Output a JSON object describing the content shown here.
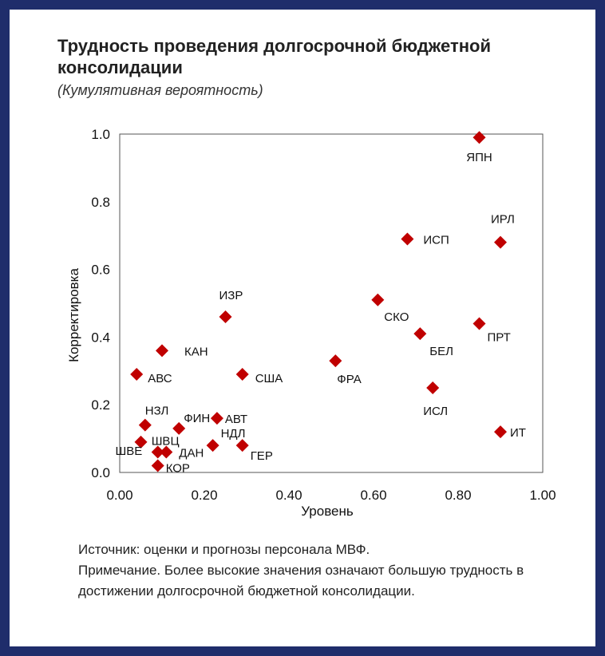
{
  "header": {
    "title": "Трудность проведения долгосрочной бюджетной консолидации",
    "subtitle": "(Кумулятивная вероятность)"
  },
  "footer": {
    "source": "Источник: оценки и прогнозы персонала МВФ.",
    "note": "Примечание. Более высокие значения означают большую трудность в достижении долгосрочной бюджетной консолидации."
  },
  "colors": {
    "marker": "#c00000",
    "frame": "#1f2d6b"
  },
  "chart_data": {
    "type": "scatter",
    "title": "Трудность проведения долгосрочной бюджетной консолидации",
    "subtitle": "(Кумулятивная вероятность)",
    "xlabel": "Уровень",
    "ylabel": "Корректировка",
    "xlim": [
      0.0,
      1.0
    ],
    "ylim": [
      0.0,
      1.0
    ],
    "xticks": [
      "0.00",
      "0.20",
      "0.40",
      "0.60",
      "0.80",
      "1.00"
    ],
    "yticks": [
      "0.0",
      "0.2",
      "0.4",
      "0.6",
      "0.8",
      "1.0"
    ],
    "grid": false,
    "marker": "diamond",
    "points": [
      {
        "label": "ЯПН",
        "x": 0.85,
        "y": 0.99
      },
      {
        "label": "ИРЛ",
        "x": 0.9,
        "y": 0.68
      },
      {
        "label": "ИСП",
        "x": 0.68,
        "y": 0.69
      },
      {
        "label": "СКО",
        "x": 0.61,
        "y": 0.51
      },
      {
        "label": "БЕЛ",
        "x": 0.71,
        "y": 0.41
      },
      {
        "label": "ПРТ",
        "x": 0.85,
        "y": 0.44
      },
      {
        "label": "ФРА",
        "x": 0.51,
        "y": 0.33
      },
      {
        "label": "ИСЛ",
        "x": 0.74,
        "y": 0.25
      },
      {
        "label": "ИТ",
        "x": 0.9,
        "y": 0.12
      },
      {
        "label": "ИЗР",
        "x": 0.25,
        "y": 0.46
      },
      {
        "label": "КАН",
        "x": 0.1,
        "y": 0.36
      },
      {
        "label": "АВС",
        "x": 0.04,
        "y": 0.29
      },
      {
        "label": "США",
        "x": 0.29,
        "y": 0.29
      },
      {
        "label": "НЗЛ",
        "x": 0.06,
        "y": 0.14
      },
      {
        "label": "ФИН",
        "x": 0.14,
        "y": 0.13
      },
      {
        "label": "АВТ",
        "x": 0.23,
        "y": 0.16
      },
      {
        "label": "ШВЕ",
        "x": 0.05,
        "y": 0.09
      },
      {
        "label": "ШВЦ",
        "x": 0.09,
        "y": 0.06
      },
      {
        "label": "ДАН",
        "x": 0.11,
        "y": 0.06
      },
      {
        "label": "КОР",
        "x": 0.09,
        "y": 0.02
      },
      {
        "label": "НДЛ",
        "x": 0.22,
        "y": 0.08
      },
      {
        "label": "ГЕР",
        "x": 0.29,
        "y": 0.08
      }
    ]
  }
}
